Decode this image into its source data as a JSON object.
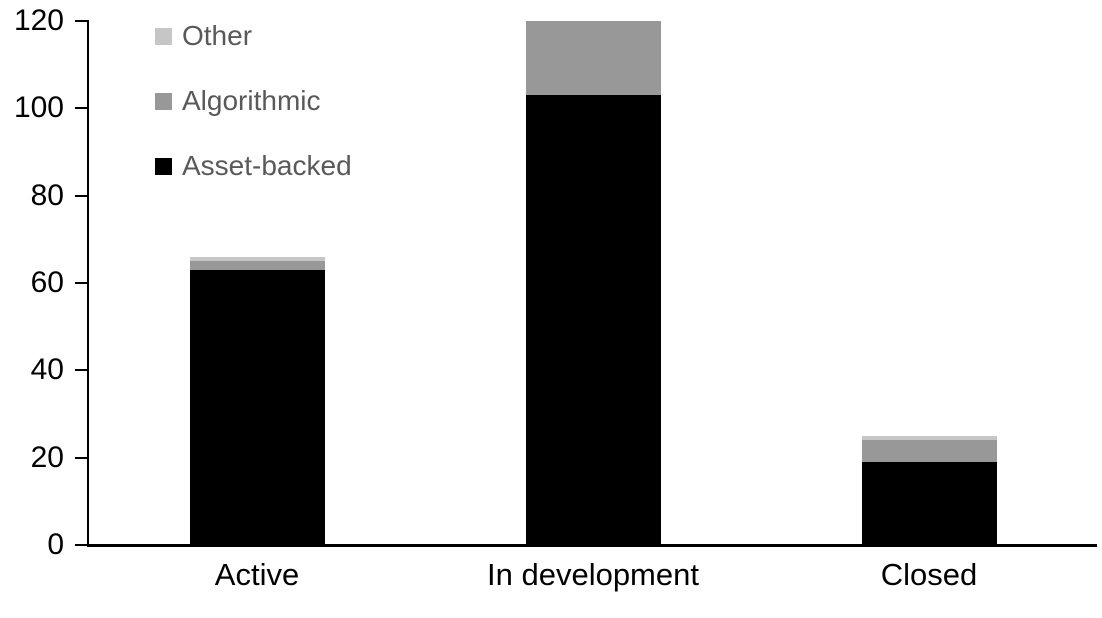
{
  "chart_data": {
    "type": "bar",
    "stacked": true,
    "title": "",
    "xlabel": "",
    "ylabel": "",
    "categories": [
      "Active",
      "In development",
      "Closed"
    ],
    "series": [
      {
        "name": "Other",
        "color": "#c6c6c6",
        "values": [
          1,
          0,
          1
        ]
      },
      {
        "name": "Algorithmic",
        "color": "#989898",
        "values": [
          2,
          17,
          5
        ]
      },
      {
        "name": "Asset-backed",
        "color": "#000000",
        "values": [
          63,
          103,
          19
        ]
      }
    ],
    "totals": [
      66,
      120,
      25
    ],
    "ylim": [
      0,
      120
    ],
    "yticks": [
      0,
      20,
      40,
      60,
      80,
      100,
      120
    ],
    "grid": false,
    "legend_position": "top-left-inside",
    "legend_text_color": "#595959",
    "axis_color": "#000000",
    "background_color": "#ffffff"
  }
}
